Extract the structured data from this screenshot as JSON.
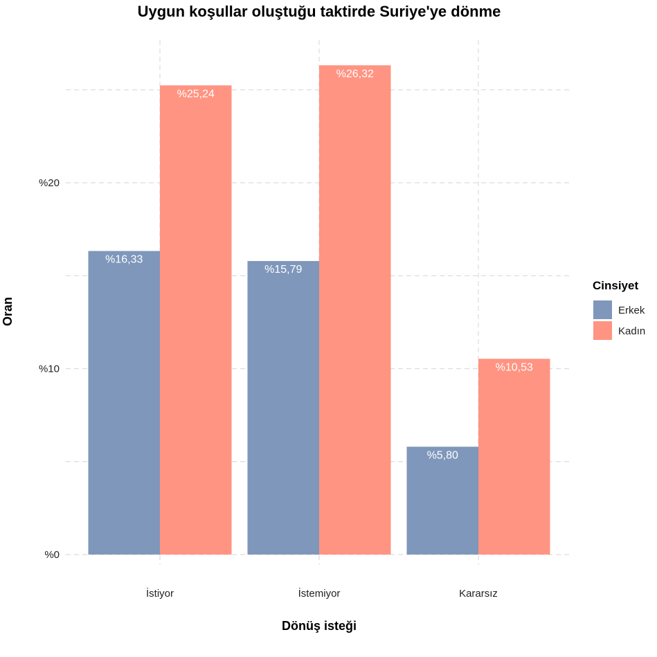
{
  "chart_data": {
    "type": "bar",
    "title": "Uygun koşullar oluştuğu taktirde Suriye'ye dönme",
    "xlabel": "Dönüş isteği",
    "ylabel": "Oran",
    "categories": [
      "İstiyor",
      "İstemiyor",
      "Kararsız"
    ],
    "series": [
      {
        "name": "Erkek",
        "values": [
          16.33,
          15.79,
          5.8
        ],
        "labels": [
          "%16,33",
          "%15,79",
          "%5,80"
        ],
        "color": "#7f97bb"
      },
      {
        "name": "Kadın",
        "values": [
          25.24,
          26.32,
          10.53
        ],
        "labels": [
          "%25,24",
          "%26,32",
          "%10,53"
        ],
        "color": "#ff9482"
      }
    ],
    "ylim": [
      0,
      27.5
    ],
    "yticks": [
      0,
      10,
      20
    ],
    "ytick_labels": [
      "%0",
      "%10",
      "%20"
    ],
    "grid": true,
    "legend": {
      "title": "Cinsiyet",
      "position": "right"
    }
  }
}
